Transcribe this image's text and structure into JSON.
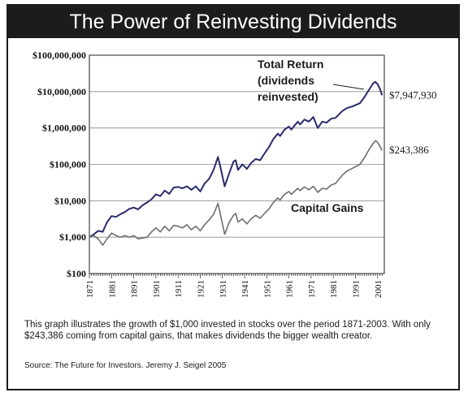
{
  "chart_data": {
    "type": "line",
    "title": "The Power of Reinvesting Dividends",
    "y_scale": "log",
    "ylim": [
      100,
      100000000
    ],
    "xlim": [
      1871,
      2004
    ],
    "y_ticks": [
      100,
      1000,
      10000,
      100000,
      1000000,
      10000000,
      100000000
    ],
    "y_tick_labels": [
      "$100",
      "$1,000",
      "$10,000",
      "$100,000",
      "$1,000,000",
      "$10,000,000",
      "$100,000,000"
    ],
    "x_ticks": [
      1871,
      1881,
      1891,
      1901,
      1911,
      1921,
      1931,
      1941,
      1951,
      1961,
      1971,
      1981,
      1991,
      2001
    ],
    "x_tick_labels": [
      "1871",
      "1881",
      "1891",
      "1901",
      "1911",
      "1921",
      "1931",
      "1941",
      "1951",
      "1961",
      "1971",
      "1981",
      "1991",
      "2001"
    ],
    "grid": "horizontal",
    "series": [
      {
        "name": "Total Return (dividends reinvested)",
        "label_lines": [
          "Total Return",
          "(dividends",
          "reinvested)"
        ],
        "color": "#2a2a6e",
        "end_label": "$7,947,930",
        "points": [
          [
            1871,
            1000
          ],
          [
            1873,
            1200
          ],
          [
            1875,
            1500
          ],
          [
            1877,
            1400
          ],
          [
            1879,
            2600
          ],
          [
            1881,
            3800
          ],
          [
            1883,
            3600
          ],
          [
            1885,
            4300
          ],
          [
            1887,
            4900
          ],
          [
            1889,
            6000
          ],
          [
            1891,
            6500
          ],
          [
            1893,
            5800
          ],
          [
            1895,
            7500
          ],
          [
            1897,
            9000
          ],
          [
            1899,
            11000
          ],
          [
            1901,
            15000
          ],
          [
            1903,
            13500
          ],
          [
            1905,
            19000
          ],
          [
            1907,
            15500
          ],
          [
            1909,
            23000
          ],
          [
            1911,
            24000
          ],
          [
            1913,
            22000
          ],
          [
            1915,
            25000
          ],
          [
            1917,
            20000
          ],
          [
            1919,
            25000
          ],
          [
            1921,
            18000
          ],
          [
            1923,
            30000
          ],
          [
            1925,
            40000
          ],
          [
            1927,
            70000
          ],
          [
            1929,
            160000
          ],
          [
            1930,
            90000
          ],
          [
            1932,
            25000
          ],
          [
            1934,
            55000
          ],
          [
            1936,
            120000
          ],
          [
            1937,
            130000
          ],
          [
            1938,
            70000
          ],
          [
            1940,
            100000
          ],
          [
            1942,
            75000
          ],
          [
            1944,
            110000
          ],
          [
            1946,
            140000
          ],
          [
            1948,
            130000
          ],
          [
            1950,
            200000
          ],
          [
            1952,
            300000
          ],
          [
            1954,
            500000
          ],
          [
            1956,
            700000
          ],
          [
            1957,
            600000
          ],
          [
            1959,
            900000
          ],
          [
            1961,
            1100000
          ],
          [
            1962,
            900000
          ],
          [
            1965,
            1500000
          ],
          [
            1966,
            1250000
          ],
          [
            1968,
            1700000
          ],
          [
            1970,
            1500000
          ],
          [
            1972,
            2000000
          ],
          [
            1974,
            1000000
          ],
          [
            1976,
            1500000
          ],
          [
            1978,
            1400000
          ],
          [
            1980,
            1800000
          ],
          [
            1982,
            1900000
          ],
          [
            1985,
            2900000
          ],
          [
            1987,
            3500000
          ],
          [
            1990,
            4000000
          ],
          [
            1993,
            4800000
          ],
          [
            1995,
            7000000
          ],
          [
            1997,
            11000000
          ],
          [
            1999,
            17000000
          ],
          [
            2000,
            18500000
          ],
          [
            2001,
            16000000
          ],
          [
            2002,
            12000000
          ],
          [
            2003,
            7947930
          ]
        ]
      },
      {
        "name": "Capital Gains",
        "label_lines": [
          "Capital Gains"
        ],
        "color": "#6e6e6e",
        "end_label": "$243,386",
        "points": [
          [
            1871,
            1000
          ],
          [
            1873,
            1100
          ],
          [
            1875,
            900
          ],
          [
            1877,
            600
          ],
          [
            1879,
            900
          ],
          [
            1881,
            1300
          ],
          [
            1883,
            1100
          ],
          [
            1885,
            1000
          ],
          [
            1887,
            1100
          ],
          [
            1889,
            1000
          ],
          [
            1891,
            1100
          ],
          [
            1893,
            900
          ],
          [
            1895,
            950
          ],
          [
            1897,
            1000
          ],
          [
            1899,
            1400
          ],
          [
            1901,
            1800
          ],
          [
            1903,
            1400
          ],
          [
            1905,
            2000
          ],
          [
            1907,
            1500
          ],
          [
            1909,
            2100
          ],
          [
            1911,
            2000
          ],
          [
            1913,
            1800
          ],
          [
            1915,
            2200
          ],
          [
            1917,
            1600
          ],
          [
            1919,
            2000
          ],
          [
            1921,
            1500
          ],
          [
            1923,
            2200
          ],
          [
            1925,
            3000
          ],
          [
            1927,
            4200
          ],
          [
            1929,
            8500
          ],
          [
            1930,
            4500
          ],
          [
            1932,
            1200
          ],
          [
            1934,
            2500
          ],
          [
            1936,
            4000
          ],
          [
            1937,
            4500
          ],
          [
            1938,
            2600
          ],
          [
            1940,
            3200
          ],
          [
            1942,
            2300
          ],
          [
            1944,
            3200
          ],
          [
            1946,
            4000
          ],
          [
            1948,
            3300
          ],
          [
            1950,
            4500
          ],
          [
            1952,
            6000
          ],
          [
            1954,
            9000
          ],
          [
            1956,
            12000
          ],
          [
            1957,
            10500
          ],
          [
            1959,
            15000
          ],
          [
            1961,
            18000
          ],
          [
            1962,
            15000
          ],
          [
            1965,
            22000
          ],
          [
            1966,
            19000
          ],
          [
            1968,
            24000
          ],
          [
            1970,
            20000
          ],
          [
            1972,
            25000
          ],
          [
            1974,
            17000
          ],
          [
            1976,
            22000
          ],
          [
            1978,
            21000
          ],
          [
            1980,
            27000
          ],
          [
            1982,
            30000
          ],
          [
            1985,
            50000
          ],
          [
            1987,
            65000
          ],
          [
            1990,
            80000
          ],
          [
            1993,
            100000
          ],
          [
            1995,
            150000
          ],
          [
            1997,
            250000
          ],
          [
            1999,
            380000
          ],
          [
            2000,
            450000
          ],
          [
            2001,
            400000
          ],
          [
            2002,
            320000
          ],
          [
            2003,
            243386
          ]
        ]
      }
    ]
  },
  "caption": "This graph illustrates the growth of $1,000 invested in stocks over the period 1871-2003. With only $243,386 coming from capital gains, that makes dividends the bigger wealth creator.",
  "source": "Source: The Future for Investors. Jeremy J. Seigel 2005"
}
